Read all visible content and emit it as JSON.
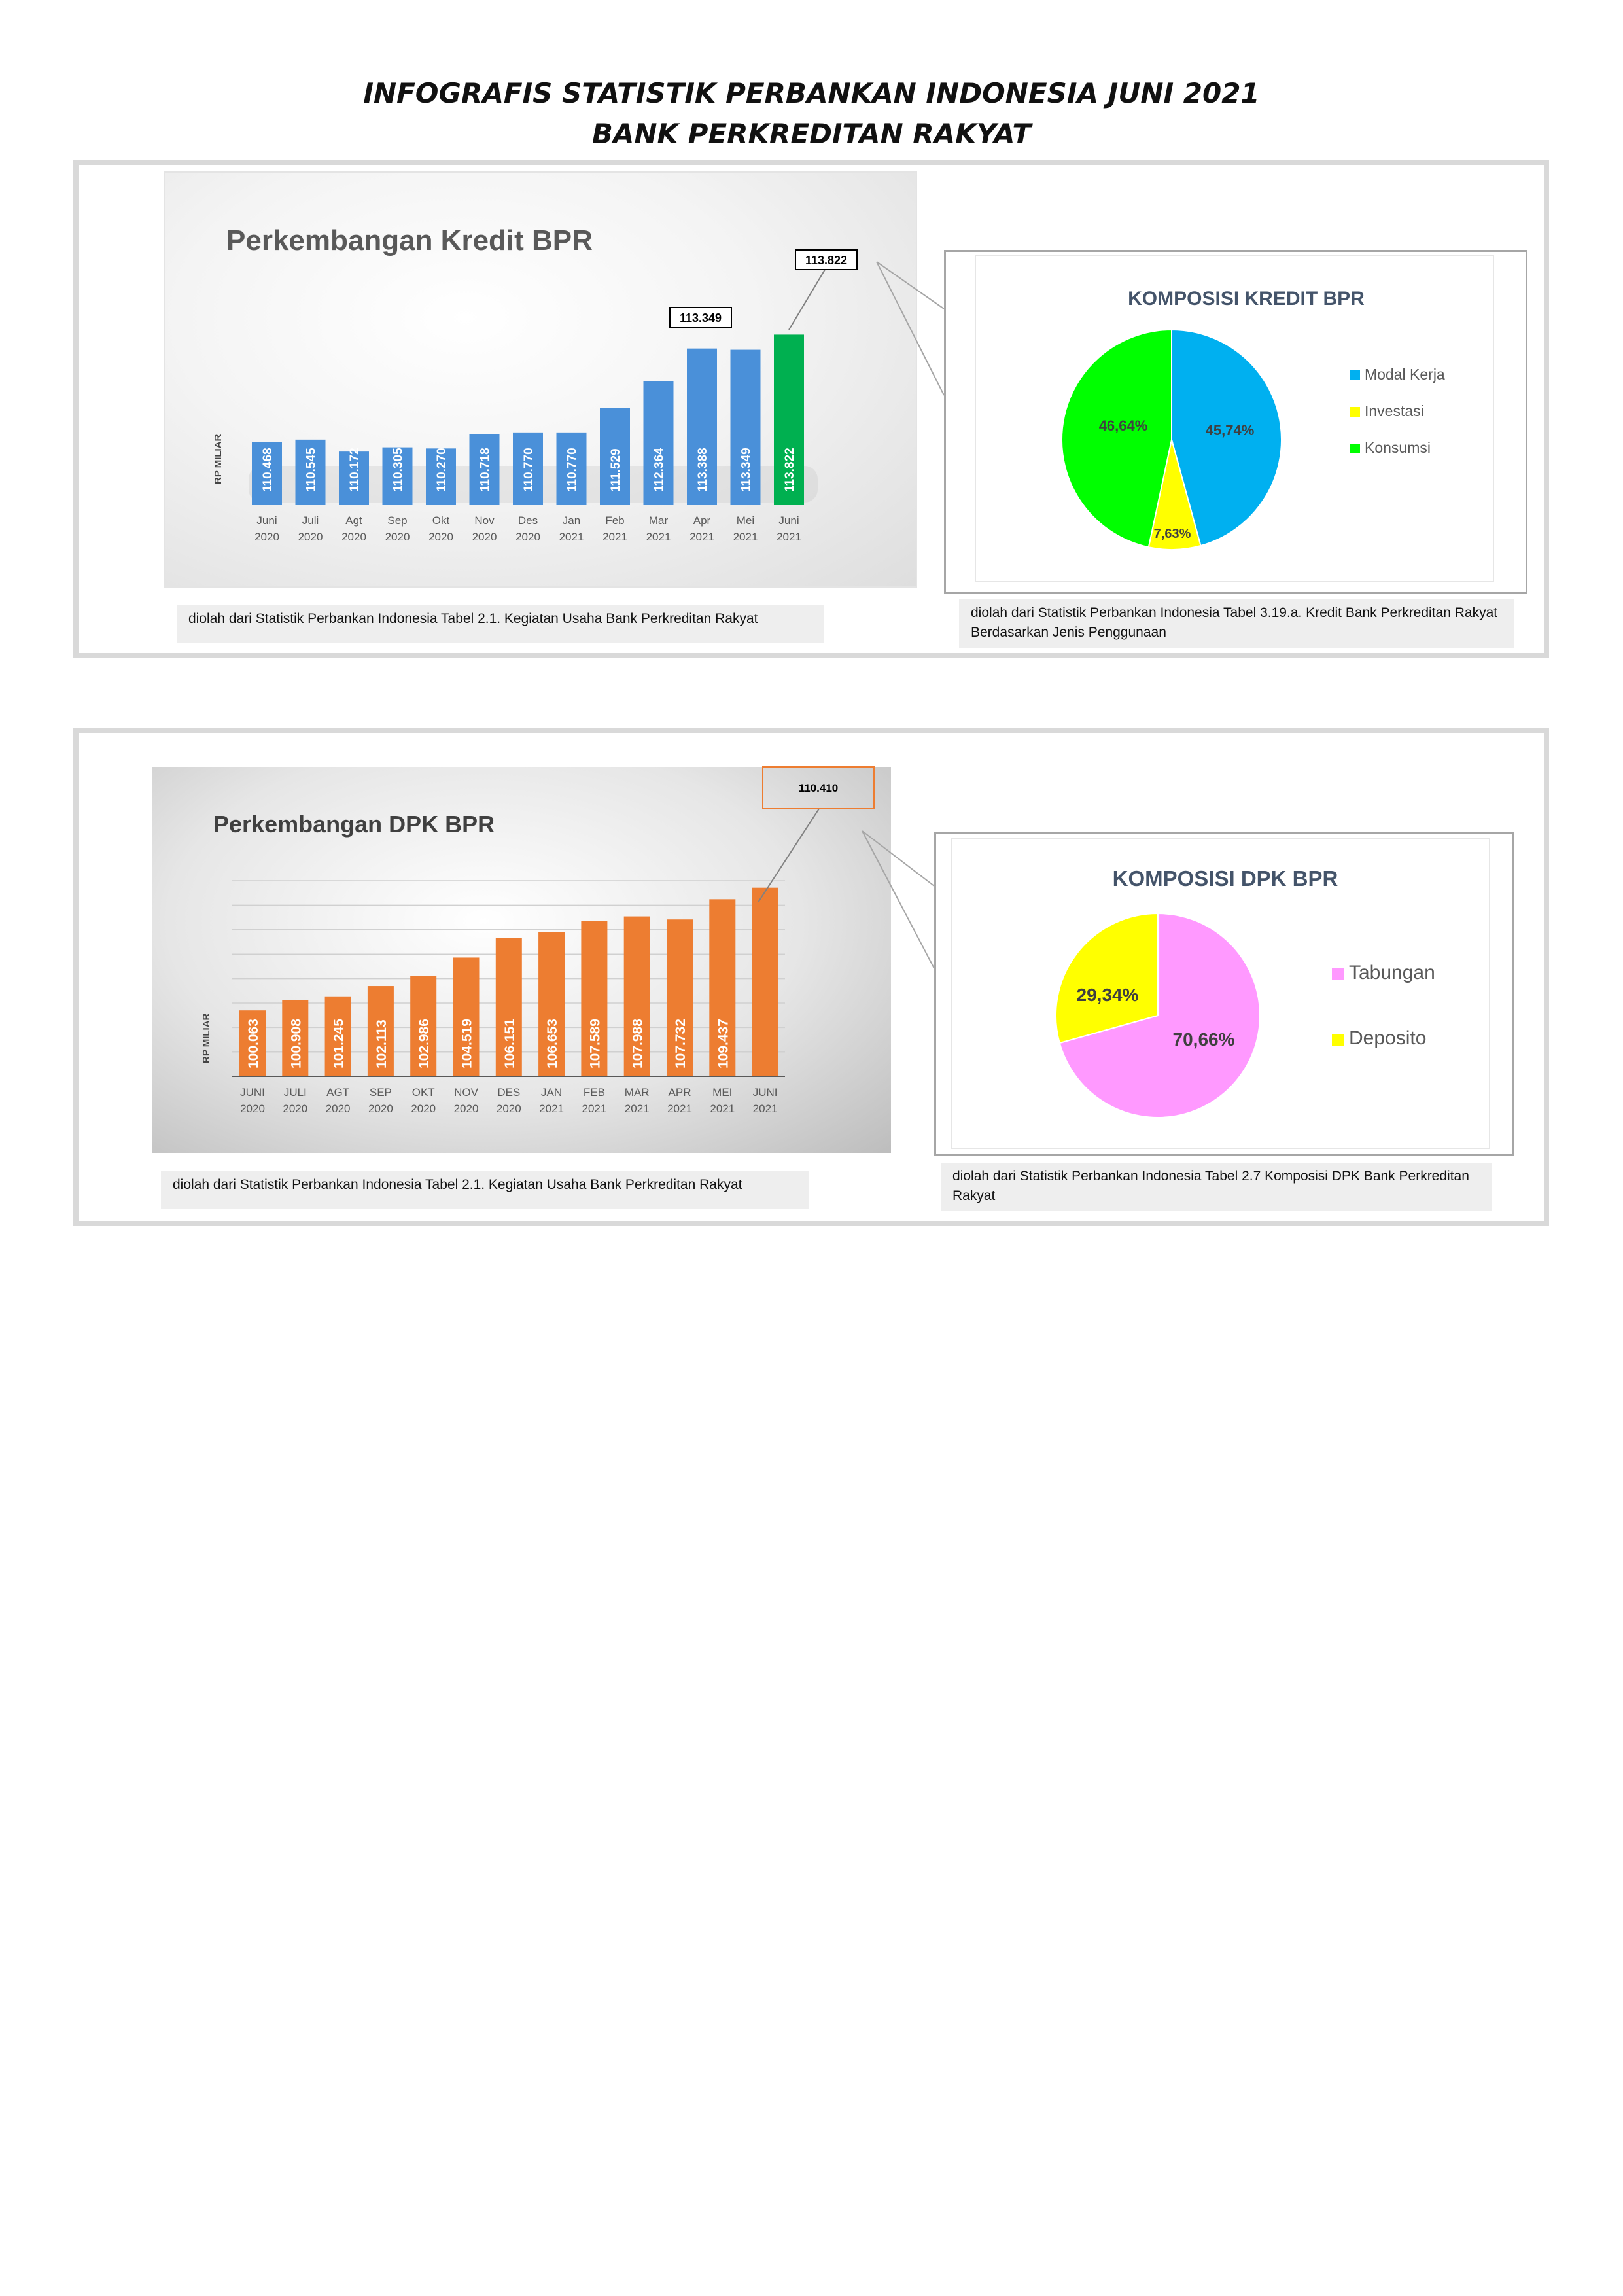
{
  "header": {
    "title_line1": "INFOGRAFIS STATISTIK PERBANKAN INDONESIA JUNI 2021",
    "title_line2": "BANK PERKREDITAN RAKYAT"
  },
  "sources": {
    "kredit_bar": "diolah dari Statistik Perbankan Indonesia Tabel 2.1. Kegiatan Usaha Bank Perkreditan Rakyat",
    "kredit_pie": "diolah dari Statistik Perbankan Indonesia Tabel 3.19.a. Kredit Bank Perkreditan Rakyat Berdasarkan Jenis Penggunaan",
    "dpk_bar": "diolah dari Statistik Perbankan Indonesia Tabel 2.1. Kegiatan Usaha Bank Perkreditan Rakyat",
    "dpk_pie": "diolah dari Statistik Perbankan Indonesia Tabel 2.7 Komposisi DPK Bank Perkreditan Rakyat"
  },
  "colors": {
    "kredit_bar": "#4a90d9",
    "kredit_highlight": "#00b050",
    "dpk_bar": "#ed7d31",
    "modal_kerja": "#00b0f0",
    "investasi": "#ffff00",
    "konsumsi": "#00ff00",
    "tabungan": "#ff99ff",
    "deposito": "#ffff00"
  },
  "chart_data": [
    {
      "type": "bar",
      "title": "Perkembangan Kredit BPR",
      "ylabel": "RP MILIAR",
      "categories": [
        [
          "Juni",
          "2020"
        ],
        [
          "Juli",
          "2020"
        ],
        [
          "Agt",
          "2020"
        ],
        [
          "Sep",
          "2020"
        ],
        [
          "Okt",
          "2020"
        ],
        [
          "Nov",
          "2020"
        ],
        [
          "Des",
          "2020"
        ],
        [
          "Jan",
          "2021"
        ],
        [
          "Feb",
          "2021"
        ],
        [
          "Mar",
          "2021"
        ],
        [
          "Apr",
          "2021"
        ],
        [
          "Mei",
          "2021"
        ],
        [
          "Juni",
          "2021"
        ]
      ],
      "values": [
        110.468,
        110.545,
        110.172,
        110.305,
        110.27,
        110.718,
        110.77,
        110.77,
        111.529,
        112.364,
        113.388,
        113.349,
        113.822
      ],
      "value_labels": [
        "110.468",
        "110.545",
        "110.172",
        "110.305",
        "110.270",
        "110.718",
        "110.770",
        "110.770",
        "111.529",
        "112.364",
        "113.388",
        "113.349",
        "113.822"
      ],
      "callouts": [
        {
          "index": 11,
          "label": "113.349"
        },
        {
          "index": 12,
          "label": "113.822"
        }
      ],
      "ylim": [
        108.5,
        114.3
      ]
    },
    {
      "type": "pie",
      "title": "KOMPOSISI KREDIT BPR",
      "slices": [
        {
          "name": "Modal Kerja",
          "value": 45.74,
          "label": "45,74%"
        },
        {
          "name": "Investasi",
          "value": 7.63,
          "label": "7,63%"
        },
        {
          "name": "Konsumsi",
          "value": 46.64,
          "label": "46,64%"
        }
      ],
      "legend": "right"
    },
    {
      "type": "bar",
      "title": "Perkembangan DPK BPR",
      "ylabel": "RP MILIAR",
      "categories": [
        [
          "JUNI",
          "2020"
        ],
        [
          "JULI",
          "2020"
        ],
        [
          "AGT",
          "2020"
        ],
        [
          "SEP",
          "2020"
        ],
        [
          "OKT",
          "2020"
        ],
        [
          "NOV",
          "2020"
        ],
        [
          "DES",
          "2020"
        ],
        [
          "JAN",
          "2021"
        ],
        [
          "FEB",
          "2021"
        ],
        [
          "MAR",
          "2021"
        ],
        [
          "APR",
          "2021"
        ],
        [
          "MEI",
          "2021"
        ],
        [
          "JUNI",
          "2021"
        ]
      ],
      "values": [
        100.063,
        100.908,
        101.245,
        102.113,
        102.986,
        104.519,
        106.151,
        106.653,
        107.589,
        107.988,
        107.732,
        109.437,
        110.41
      ],
      "value_labels": [
        "100.063",
        "100.908",
        "101.245",
        "102.113",
        "102.986",
        "104.519",
        "106.151",
        "106.653",
        "107.589",
        "107.988",
        "107.732",
        "109.437",
        ""
      ],
      "callouts": [
        {
          "index": 12,
          "label": "110.410"
        }
      ],
      "ylim": [
        94.5,
        111
      ],
      "grid": true
    },
    {
      "type": "pie",
      "title": "KOMPOSISI DPK BPR",
      "slices": [
        {
          "name": "Tabungan",
          "value": 70.66,
          "label": "70,66%"
        },
        {
          "name": "Deposito",
          "value": 29.34,
          "label": "29,34%"
        }
      ],
      "legend": "right"
    }
  ]
}
